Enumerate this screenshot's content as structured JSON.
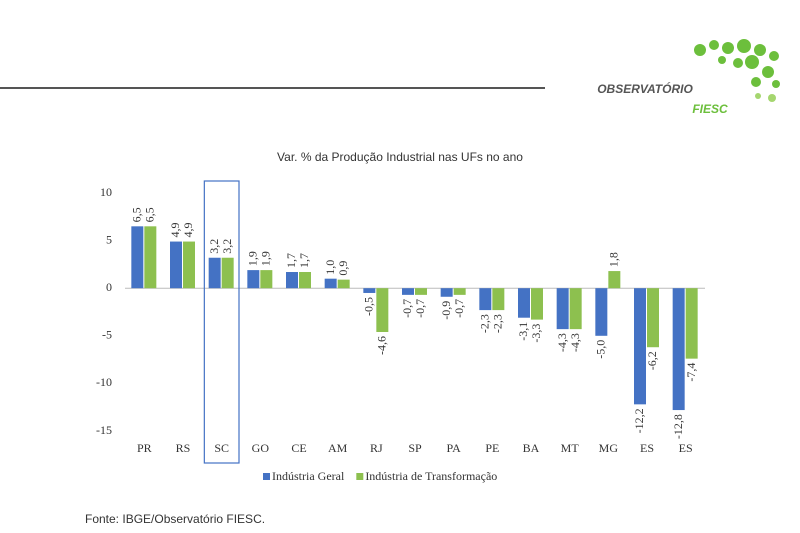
{
  "chart_data": {
    "type": "bar",
    "title": "Var. % da Produção Industrial nas UFs no ano",
    "categories": [
      "PR",
      "RS",
      "SC",
      "GO",
      "CE",
      "AM",
      "RJ",
      "SP",
      "PA",
      "PE",
      "BA",
      "MT",
      "MG",
      "ES",
      "ES"
    ],
    "series": [
      {
        "name": "Indústria Geral",
        "color": "#4472c4",
        "values": [
          6.5,
          4.9,
          3.2,
          1.9,
          1.7,
          1.0,
          -0.5,
          -0.7,
          -0.9,
          -2.3,
          -3.1,
          -4.3,
          -5.0,
          -12.2,
          -12.8
        ],
        "value_labels": [
          "6,5",
          "4,9",
          "3,2",
          "1,9",
          "1,7",
          "1,0",
          "-0,5",
          "-0,7",
          "-0,9",
          "-2,3",
          "-3,1",
          "-4,3",
          "-5,0",
          "-12,2",
          "-12,8"
        ]
      },
      {
        "name": "Indústria de Transformação",
        "color": "#8dc04f",
        "values": [
          6.5,
          4.9,
          3.2,
          1.9,
          1.7,
          0.9,
          -4.6,
          -0.7,
          -0.7,
          -2.3,
          -3.3,
          -4.3,
          1.8,
          -6.2,
          -7.4
        ],
        "value_labels": [
          "6,5",
          "4,9",
          "3,2",
          "1,9",
          "1,7",
          "0,9",
          "-4,6",
          "-0,7",
          "-0,7",
          "-2,3",
          "-3,3",
          "-4,3",
          "1,8",
          "-6,2",
          "-7,4"
        ]
      }
    ],
    "ylim": [
      -15,
      10
    ],
    "yticks": [
      10,
      5,
      0,
      -5,
      -10,
      -15
    ],
    "grid": false,
    "legend": "bottom"
  },
  "logo": {
    "line1": "OBSERVATÓRIO",
    "line2": "FIESC"
  },
  "source": "Fonte: IBGE/Observatório FIESC."
}
